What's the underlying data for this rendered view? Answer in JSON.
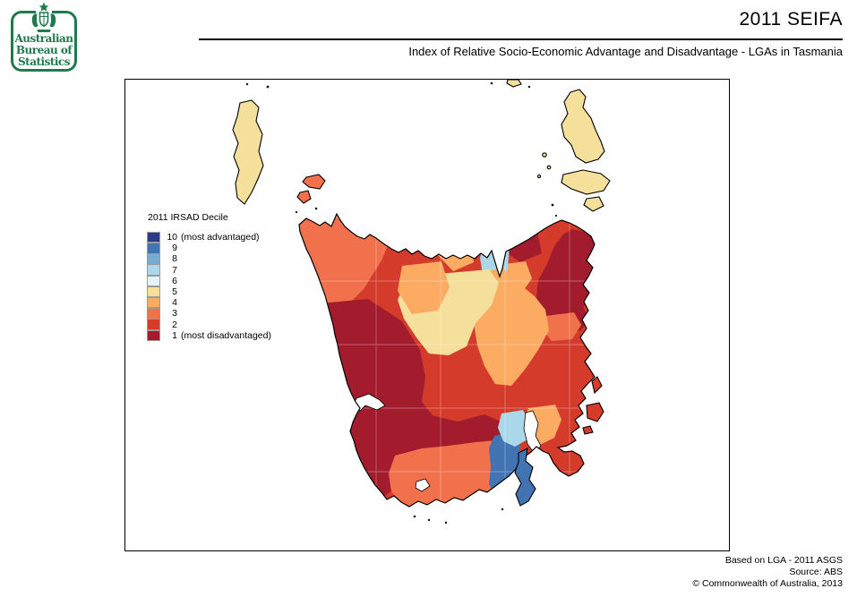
{
  "header": {
    "logo": {
      "line1": "Australian",
      "line2": "Bureau of",
      "line3": "Statistics"
    },
    "title": "2011 SEIFA",
    "subtitle": "Index of Relative Socio-Economic Advantage and Disadvantage - LGAs in Tasmania"
  },
  "legend": {
    "title": "2011 IRSAD Decile",
    "entries": [
      {
        "decile": "10",
        "num": "10",
        "note": "(most advantaged)",
        "color": "#2B3A8C"
      },
      {
        "decile": "9",
        "num": "9",
        "note": "",
        "color": "#4273B3"
      },
      {
        "decile": "8",
        "num": "8",
        "note": "",
        "color": "#76ACD0"
      },
      {
        "decile": "7",
        "num": "7",
        "note": "",
        "color": "#ABD8E9"
      },
      {
        "decile": "6",
        "num": "6",
        "note": "",
        "color": "#E2F2F7"
      },
      {
        "decile": "5",
        "num": "5",
        "note": "",
        "color": "#F4DF9B"
      },
      {
        "decile": "4",
        "num": "4",
        "note": "",
        "color": "#FBAC62"
      },
      {
        "decile": "3",
        "num": "3",
        "note": "",
        "color": "#F2714D"
      },
      {
        "decile": "2",
        "num": "2",
        "note": "",
        "color": "#D53B2B"
      },
      {
        "decile": "1",
        "num": "1",
        "note": "(most disadvantaged)",
        "color": "#A21C2E"
      }
    ]
  },
  "map": {
    "coast_color": "#000000",
    "sea_color": "#FFFFFF",
    "graticule_color": "#FFFFFF"
  },
  "footer": {
    "line1": "Based on LGA - 2011 ASGS",
    "line2": "Source: ABS",
    "line3": "© Commonwealth of Australia, 2013"
  },
  "colors": {
    "logo_green": "#1F7A4D"
  }
}
